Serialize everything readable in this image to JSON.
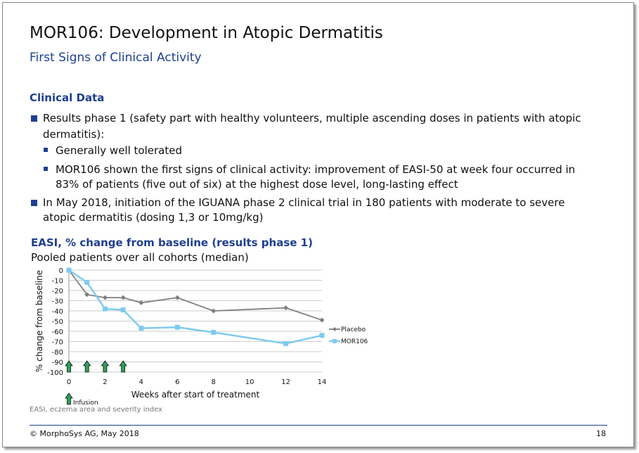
{
  "title": "MOR106: Development in Atopic Dermatitis",
  "subtitle": "First Signs of Clinical Activity",
  "section": "Clinical Data",
  "bullets": {
    "b1": "Results phase 1 (safety part with healthy volunteers, multiple ascending doses in patients with atopic",
    "b1b": "dermatitis):",
    "s1": "Generally well tolerated",
    "s2": "MOR106 shown the first signs of clinical activity: improvement of EASI-50 at week four occurred in",
    "s2b": "83% of patients (five out of six) at the highest dose level, long-lasting effect",
    "b2": "In May 2018, initiation of the IGUANA phase 2 clinical trial in 180 patients with moderate to severe",
    "b2b": "atopic dermatitis (dosing 1,3 or 10mg/kg)"
  },
  "chart_heading": "EASI, % change from baseline (results phase 1)",
  "chart_subheading": "Pooled patients over all cohorts (median)",
  "footnote": "EASI, eczema area and severity index",
  "footer": {
    "copyright": "© MorphoSys AG, May 2018",
    "page": "18"
  },
  "chart_data": {
    "type": "line",
    "xlabel": "Weeks after start of treatment",
    "ylabel": "% change from baseline",
    "xlim": [
      0,
      14
    ],
    "ylim": [
      -100,
      0
    ],
    "xticks": [
      0,
      2,
      4,
      6,
      8,
      10,
      12,
      14
    ],
    "yticks": [
      0,
      -10,
      -20,
      -30,
      -40,
      -50,
      -60,
      -70,
      -80,
      -90,
      -100
    ],
    "grid": true,
    "legend": "right",
    "series": [
      {
        "name": "Placebo",
        "color": "#7f7f7f",
        "marker": "diamond",
        "x": [
          0,
          1,
          2,
          3,
          4,
          6,
          8,
          12,
          14
        ],
        "y": [
          0,
          -24,
          -27,
          -27,
          -32,
          -27,
          -40,
          -37,
          -49
        ]
      },
      {
        "name": "MOR106",
        "color": "#7ecbef",
        "marker": "square",
        "x": [
          0,
          1,
          2,
          3,
          4,
          6,
          8,
          12,
          14
        ],
        "y": [
          0,
          -12,
          -38,
          -39,
          -57,
          -56,
          -61,
          -72,
          -64
        ]
      }
    ],
    "infusion_weeks": [
      0,
      1,
      2,
      3
    ],
    "infusion_label": "Infusion",
    "infusion_color": "#2ea05a"
  }
}
